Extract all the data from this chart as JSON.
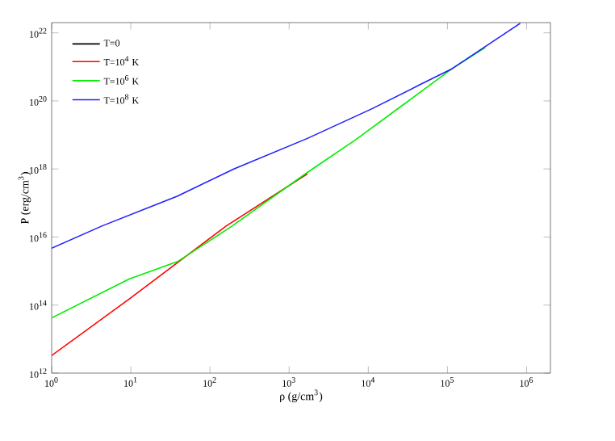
{
  "chart_data": {
    "type": "line",
    "xlabel": "ρ (g/cm$^{3}$)",
    "ylabel": "P (erg/cm$^{3}$)",
    "log": "xy",
    "legend": "top left",
    "grid": false,
    "xlim": [
      1,
      2000000
    ],
    "ylim": [
      1000000000000.0,
      2e+22
    ],
    "xticks": [
      {
        "value": 1,
        "label": "10$^{0}$"
      },
      {
        "value": 10,
        "label": "10$^{1}$"
      },
      {
        "value": 100,
        "label": "10$^{2}$"
      },
      {
        "value": 1000,
        "label": "10$^{3}$"
      },
      {
        "value": 10000,
        "label": "10$^{4}$"
      },
      {
        "value": 100000,
        "label": "10$^{5}$"
      },
      {
        "value": 1000000,
        "label": "10$^{6}$"
      }
    ],
    "yticks": [
      {
        "value": 1000000000000.0,
        "label": "10$^{12}$"
      },
      {
        "value": 100000000000000.0,
        "label": "10$^{14}$"
      },
      {
        "value": 1e+16,
        "label": "10$^{16}$"
      },
      {
        "value": 1e+18,
        "label": "10$^{18}$"
      },
      {
        "value": 1e+20,
        "label": "10$^{20}$"
      },
      {
        "value": 1e+22,
        "label": "10$^{22}$"
      }
    ],
    "series": [
      {
        "name": "T=0",
        "color": "#000000"
      },
      {
        "name": "T=10$^{4}$ K",
        "color": "#ff0000",
        "x": [
          1,
          9.5,
          160,
          1700
        ],
        "values": [
          3300000000000.0,
          150000000000000.0,
          2.1e+16,
          7.2e+17
        ]
      },
      {
        "name": "T=10$^{6}$ K",
        "color": "#00ee00",
        "x": [
          1,
          9.5,
          39,
          190,
          1700,
          6900,
          28000,
          115000,
          300000
        ],
        "values": [
          42000000000000.0,
          580000000000000.0,
          1900000000000000.0,
          2.1e+16,
          7.9e+17,
          7.2e+18,
          7.9e+19,
          8.9e+20,
          3.7e+21
        ]
      },
      {
        "name": "T=10$^{8}$ K",
        "color": "#2020ff",
        "x": [
          1,
          4.3,
          39,
          200,
          1700,
          11000,
          45000,
          115000,
          830000
        ],
        "values": [
          4700000000000000.0,
          2.1e+16,
          1.6e+17,
          1e+18,
          7.9e+18,
          5.8e+19,
          3e+20,
          8.9e+20,
          1.9e+22
        ]
      }
    ]
  }
}
